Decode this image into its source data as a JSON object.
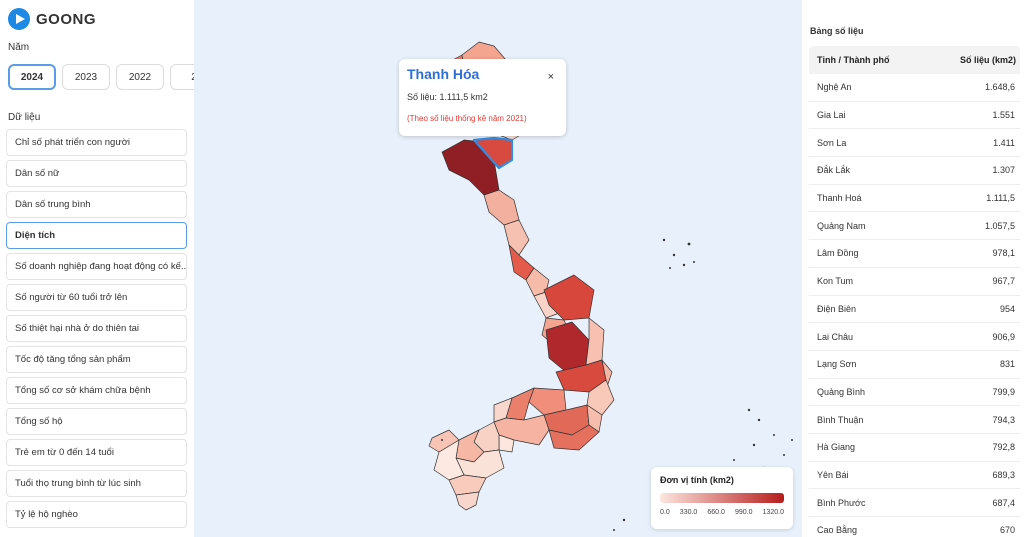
{
  "app": {
    "name": "GOONG"
  },
  "year_section": {
    "label": "Năm",
    "years": [
      "2024",
      "2023",
      "2022",
      "2"
    ],
    "selected": "2024"
  },
  "data_section": {
    "label": "Dữ liệu",
    "items": [
      "Chỉ số phát triển con người",
      "Dân số nữ",
      "Dân số trung bình",
      "Diện tích",
      "Số doanh nghiệp đang hoạt động có kế...",
      "Số người từ 60 tuổi trở lên",
      "Số thiệt hại nhà ở do thiên tai",
      "Tốc độ tăng tổng sản phẩm",
      "Tổng số cơ sở khám chữa bệnh",
      "Tổng số hộ",
      "Trẻ em từ 0 đến 14 tuổi",
      "Tuổi thọ trung bình từ lúc sinh",
      "Tỷ lệ hộ nghèo"
    ],
    "selected": "Diện tích"
  },
  "popup": {
    "title": "Thanh Hóa",
    "close_glyph": "×",
    "value": "Số liệu: 1.111,5 km2",
    "note": "(Theo số liệu thống kê năm 2021)"
  },
  "legend": {
    "title": "Đơn vị tính (km2)",
    "ticks": [
      "0.0",
      "330.0",
      "660.0",
      "990.0",
      "1320.0"
    ],
    "color_low": "#fde6df",
    "color_high": "#b71c1c"
  },
  "table": {
    "title": "Bảng số liệu",
    "col_name": "Tỉnh / Thành phố",
    "col_value": "Số liệu (km2)",
    "rows": [
      [
        "Nghệ An",
        "1.648,6"
      ],
      [
        "Gia Lai",
        "1.551"
      ],
      [
        "Sơn La",
        "1.411"
      ],
      [
        "Đắk Lắk",
        "1.307"
      ],
      [
        "Thanh Hoá",
        "1.111,5"
      ],
      [
        "Quảng Nam",
        "1.057,5"
      ],
      [
        "Lâm Đồng",
        "978,1"
      ],
      [
        "Kon Tum",
        "967,7"
      ],
      [
        "Điện Biên",
        "954"
      ],
      [
        "Lai Châu",
        "906,9"
      ],
      [
        "Lạng Sơn",
        "831"
      ],
      [
        "Quảng Bình",
        "799,9"
      ],
      [
        "Bình Thuận",
        "794,3"
      ],
      [
        "Hà Giang",
        "792,8"
      ],
      [
        "Yên Bái",
        "689,3"
      ],
      [
        "Bình Phước",
        "687,4"
      ],
      [
        "Cao Bằng",
        "670"
      ]
    ]
  },
  "colors": {
    "accent": "#2f6fd8",
    "selected_border": "#5b9ce8",
    "map_bg": "#e8f1fb",
    "note": "#e53935"
  }
}
